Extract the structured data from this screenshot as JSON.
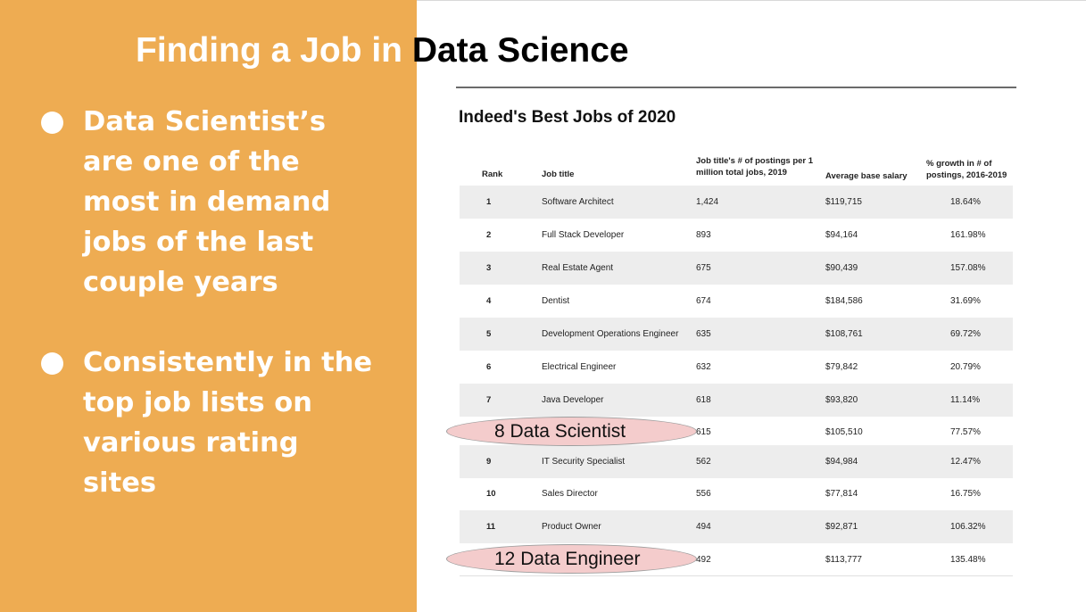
{
  "slide": {
    "title_part1": "Finding a Job in ",
    "title_part2": "Data Science",
    "bullets": [
      "Data Scientist’s are one of the most in demand jobs of the last couple years",
      "Consistently in the top job lists on various rating sites"
    ]
  },
  "table": {
    "title": "Indeed's Best Jobs of 2020",
    "headers": {
      "rank": "Rank",
      "job_title": "Job title",
      "postings": "Job title's # of postings per 1 million total jobs, 2019",
      "salary": "Average base salary",
      "growth": "% growth in # of postings, 2016-2019"
    },
    "rows": [
      {
        "rank": "1",
        "job": "Software Architect",
        "postings": "1,424",
        "salary": "$119,715",
        "growth": "18.64%"
      },
      {
        "rank": "2",
        "job": "Full Stack Developer",
        "postings": "893",
        "salary": "$94,164",
        "growth": "161.98%"
      },
      {
        "rank": "3",
        "job": "Real Estate Agent",
        "postings": "675",
        "salary": "$90,439",
        "growth": "157.08%"
      },
      {
        "rank": "4",
        "job": "Dentist",
        "postings": "674",
        "salary": "$184,586",
        "growth": "31.69%"
      },
      {
        "rank": "5",
        "job": "Development Operations Engineer",
        "postings": "635",
        "salary": "$108,761",
        "growth": "69.72%"
      },
      {
        "rank": "6",
        "job": "Electrical Engineer",
        "postings": "632",
        "salary": "$79,842",
        "growth": "20.79%"
      },
      {
        "rank": "7",
        "job": "Java Developer",
        "postings": "618",
        "salary": "$93,820",
        "growth": "11.14%"
      },
      {
        "rank": "",
        "job": "",
        "postings": "615",
        "salary": "$105,510",
        "growth": "77.57%"
      },
      {
        "rank": "9",
        "job": "IT Security Specialist",
        "postings": "562",
        "salary": "$94,984",
        "growth": "12.47%"
      },
      {
        "rank": "10",
        "job": "Sales Director",
        "postings": "556",
        "salary": "$77,814",
        "growth": "16.75%"
      },
      {
        "rank": "11",
        "job": "Product Owner",
        "postings": "494",
        "salary": "$92,871",
        "growth": "106.32%"
      },
      {
        "rank": "",
        "job": "",
        "postings": "492",
        "salary": "$113,777",
        "growth": "135.48%"
      }
    ]
  },
  "highlights": {
    "first": "8 Data Scientist",
    "second": "12 Data Engineer"
  }
}
